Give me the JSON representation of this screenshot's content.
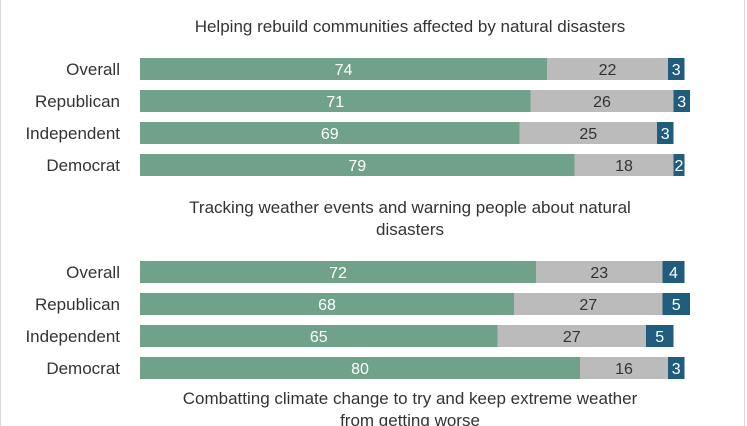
{
  "chart_data": {
    "type": "bar",
    "stacked": true,
    "orientation": "horizontal",
    "colors": [
      "#6fa288",
      "#bbbbbb",
      "#1f5c7d"
    ],
    "value_label_colors": [
      "#ffffff",
      "#333333",
      "#ffffff"
    ],
    "xlim": [
      0,
      100
    ],
    "panels": [
      {
        "title": [
          "Helping rebuild communities affected by natural disasters"
        ],
        "categories": [
          "Overall",
          "Republican",
          "Independent",
          "Democrat"
        ],
        "values": [
          [
            74,
            22,
            3
          ],
          [
            71,
            26,
            3
          ],
          [
            69,
            25,
            3
          ],
          [
            79,
            18,
            2
          ]
        ]
      },
      {
        "title": [
          "Tracking weather events and warning people about natural",
          "disasters"
        ],
        "categories": [
          "Overall",
          "Republican",
          "Independent",
          "Democrat"
        ],
        "values": [
          [
            72,
            23,
            4
          ],
          [
            68,
            27,
            5
          ],
          [
            65,
            27,
            5
          ],
          [
            80,
            16,
            3
          ]
        ]
      },
      {
        "title": [
          "Combatting climate change to try and keep extreme weather",
          "from getting worse"
        ],
        "categories": [],
        "values": []
      }
    ]
  }
}
